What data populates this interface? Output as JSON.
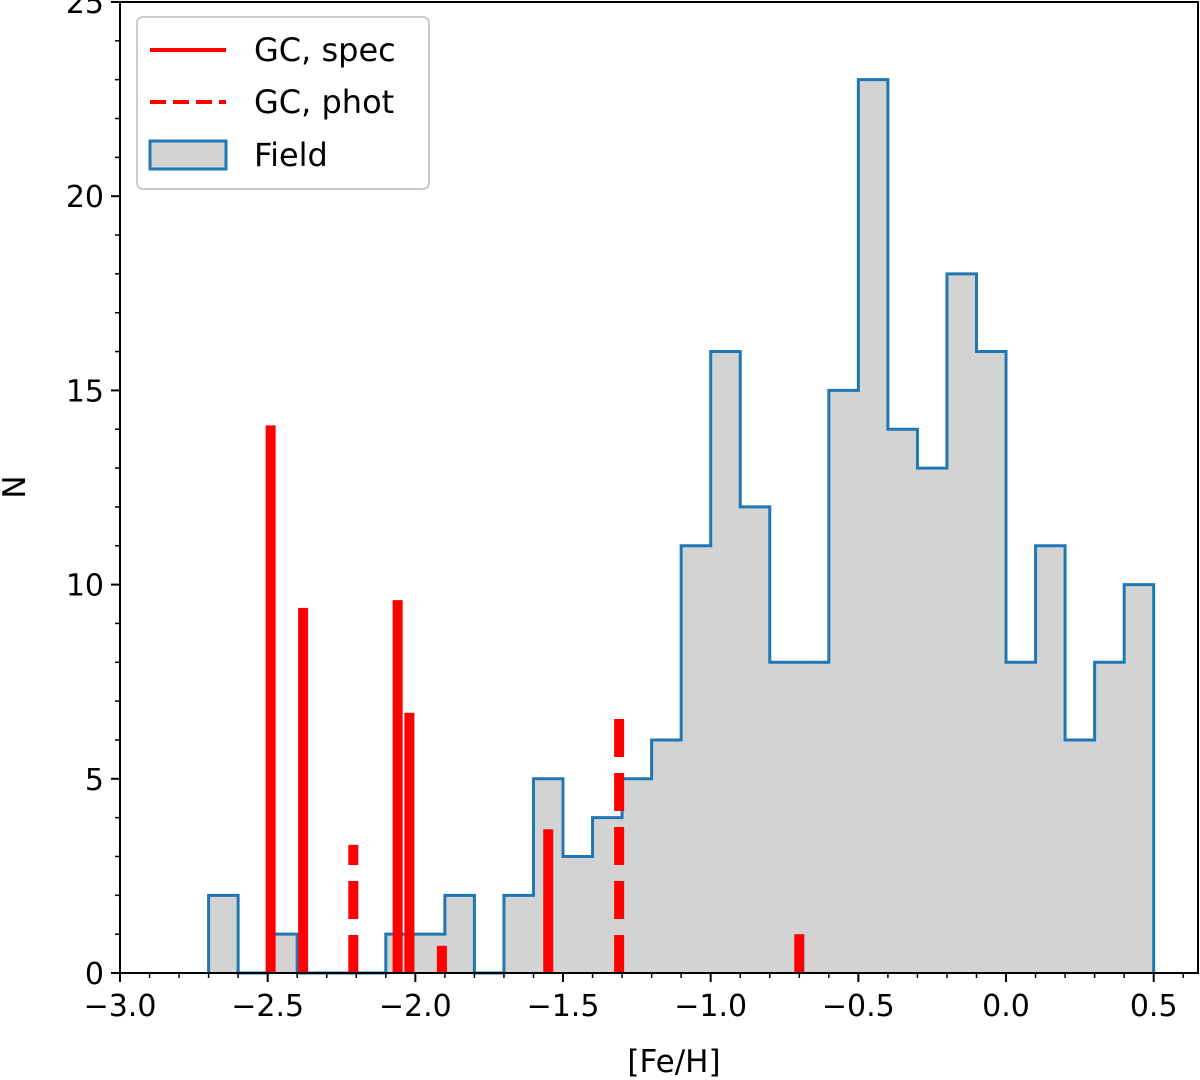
{
  "chart_data": {
    "type": "histogram",
    "xlabel": "[Fe/H]",
    "ylabel": "N",
    "xlim": [
      -3.0,
      0.65
    ],
    "ylim": [
      0,
      25
    ],
    "x_ticks": [
      -3.0,
      -2.5,
      -2.0,
      -1.5,
      -1.0,
      -0.5,
      0.0,
      0.5
    ],
    "x_tick_labels": [
      "−3.0",
      "−2.5",
      "−2.0",
      "−1.5",
      "−1.0",
      "−0.5",
      "0.0",
      "0.5"
    ],
    "y_ticks": [
      0,
      5,
      10,
      15,
      20,
      25
    ],
    "y_tick_labels": [
      "0",
      "5",
      "10",
      "15",
      "20",
      "25"
    ],
    "legend": {
      "placement": "top-left",
      "entries": [
        {
          "label": "GC, spec",
          "style": "solid-line"
        },
        {
          "label": "GC, phot",
          "style": "dashed-line"
        },
        {
          "label": "Field",
          "style": "step-fill"
        }
      ]
    },
    "field_histogram": {
      "name": "Field",
      "bin_edges": [
        -2.7,
        -2.6,
        -2.5,
        -2.4,
        -2.3,
        -2.2,
        -2.1,
        -2.0,
        -1.9,
        -1.8,
        -1.7,
        -1.6,
        -1.5,
        -1.4,
        -1.3,
        -1.2,
        -1.1,
        -1.0,
        -0.9,
        -0.8,
        -0.7,
        -0.6,
        -0.5,
        -0.4,
        -0.3,
        -0.2,
        -0.1,
        0.0,
        0.1,
        0.2,
        0.3,
        0.4,
        0.5
      ],
      "counts": [
        2,
        0,
        1,
        0,
        0,
        0,
        1,
        1,
        2,
        0,
        2,
        5,
        3,
        4,
        5,
        6,
        11,
        16,
        12,
        8,
        8,
        15,
        23,
        14,
        13,
        18,
        16,
        8,
        11,
        6,
        8,
        10
      ],
      "fill_color": "#d3d3d3",
      "edge_color": "#1f77b4"
    },
    "gc_spec": {
      "name": "GC, spec",
      "color": "#ff0000",
      "bars": [
        {
          "x": -2.49,
          "height": 14.1
        },
        {
          "x": -2.38,
          "height": 9.4
        },
        {
          "x": -2.06,
          "height": 9.6
        },
        {
          "x": -2.02,
          "height": 6.7
        },
        {
          "x": -1.91,
          "height": 0.7
        },
        {
          "x": -1.55,
          "height": 3.7
        },
        {
          "x": -0.7,
          "height": 1.0
        }
      ]
    },
    "gc_phot": {
      "name": "GC, phot",
      "color": "#ff0000",
      "bars": [
        {
          "x": -2.21,
          "height": 3.3
        },
        {
          "x": -1.31,
          "height": 6.6
        }
      ]
    }
  }
}
